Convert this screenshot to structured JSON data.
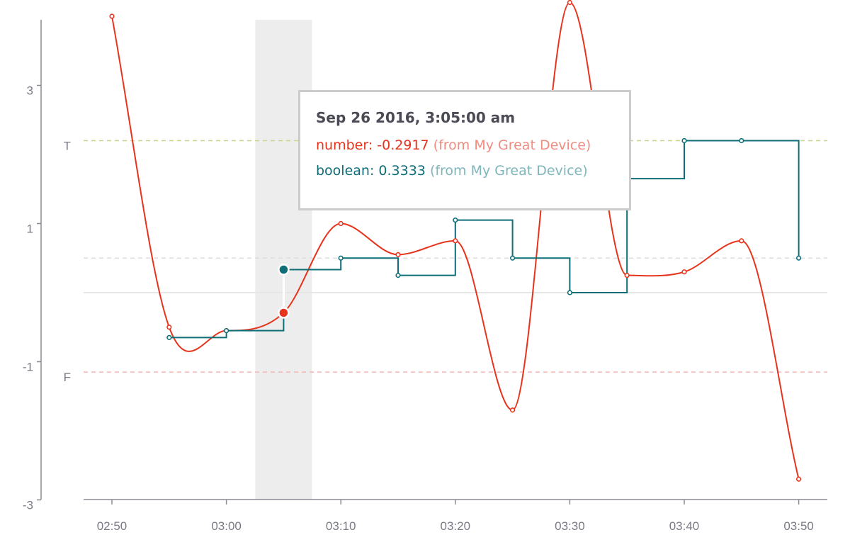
{
  "colors": {
    "number": "#e8331c",
    "boolean": "#0e6e78",
    "number_light": "#f08c80",
    "boolean_light": "#7fb6bc",
    "true_line": "#c8d68a",
    "false_line": "#f5b5b5",
    "highlight": "#ededed"
  },
  "chart_data": {
    "type": "line",
    "x": [
      "02:50",
      "02:55",
      "03:00",
      "03:05",
      "03:10",
      "03:15",
      "03:20",
      "03:25",
      "03:30",
      "03:35",
      "03:40",
      "03:45",
      "03:50"
    ],
    "x_ticks": [
      "02:50",
      "03:00",
      "03:10",
      "03:20",
      "03:30",
      "03:40",
      "03:50"
    ],
    "y_ticks": [
      "3",
      "1",
      "-1",
      "-3"
    ],
    "ylim": [
      -3,
      4
    ],
    "reference_lines": [
      {
        "label": "T",
        "value": 2.2,
        "color": "#c8d68a"
      },
      {
        "label": "",
        "value": 0.5,
        "color": "#dddddd"
      },
      {
        "label": "",
        "value": 0,
        "color": "#e6e6e6"
      },
      {
        "label": "F",
        "value": -1.15,
        "color": "#f5b5b5"
      }
    ],
    "series": [
      {
        "key": "number",
        "style": "smooth",
        "values": [
          4.0,
          -0.5,
          -0.55,
          -0.2917,
          1.0,
          0.55,
          0.75,
          -1.7,
          4.2,
          0.25,
          0.3,
          0.75,
          -2.7
        ]
      },
      {
        "key": "boolean",
        "style": "step",
        "values": [
          null,
          -0.65,
          -0.55,
          0.3333,
          0.5,
          0.25,
          1.05,
          0.5,
          0.0,
          1.65,
          2.2,
          2.2,
          0.5
        ]
      }
    ],
    "highlight": {
      "x": "03:05"
    }
  },
  "tooltip": {
    "title": "Sep 26 2016, 3:05:00 am",
    "rows": [
      {
        "label": "number: -0.2917",
        "source": "(from My Great Device)"
      },
      {
        "label": "boolean: 0.3333",
        "source": "(from My Great Device)"
      }
    ]
  }
}
